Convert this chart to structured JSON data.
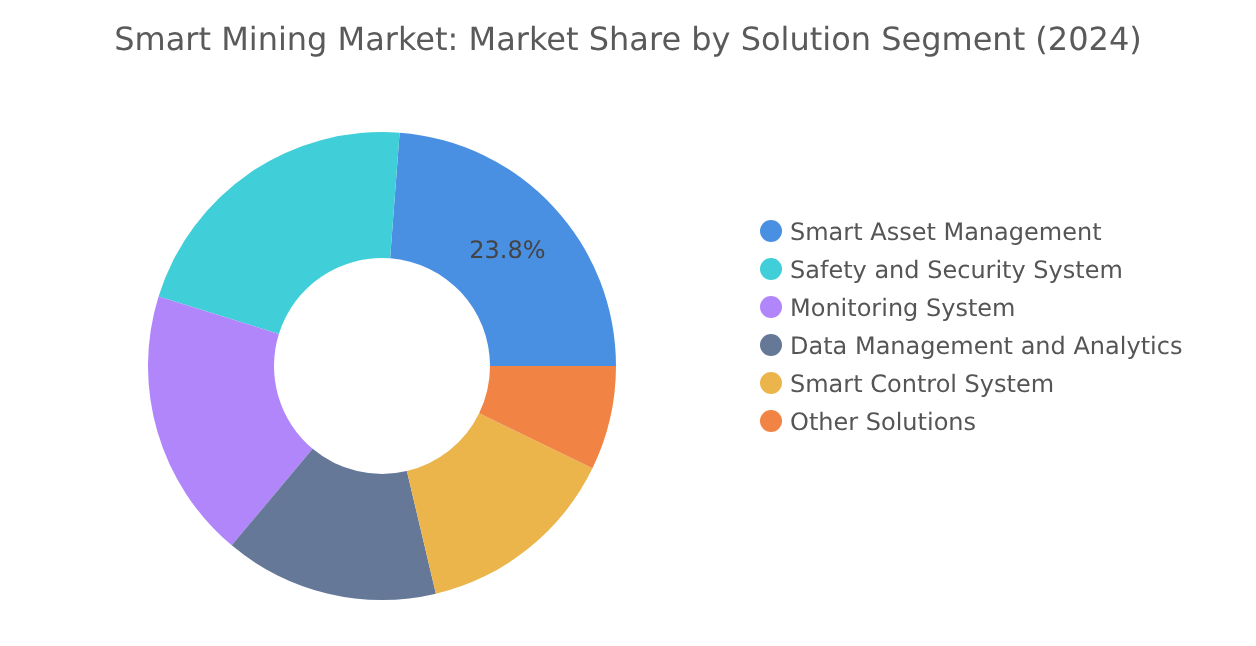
{
  "chart_data": {
    "type": "donut",
    "title": "Smart Mining Market: Market Share by Solution Segment (2024)",
    "categories": [
      "Smart Asset Management",
      "Safety and Security System",
      "Monitoring System",
      "Data Management and Analytics",
      "Smart Control System",
      "Other Solutions"
    ],
    "values": [
      23.8,
      21.4,
      18.7,
      14.8,
      14.1,
      7.2
    ],
    "colors": [
      "#4a90e2",
      "#40cfd9",
      "#b186fb",
      "#657898",
      "#ebb54b",
      "#f18344"
    ],
    "value_labels": [
      "23.8%",
      null,
      null,
      null,
      null,
      null
    ],
    "legend": "right"
  }
}
